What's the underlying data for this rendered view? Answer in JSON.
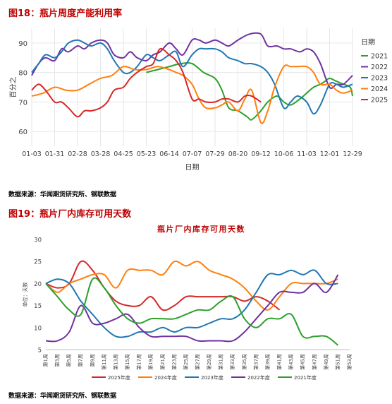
{
  "figure1": {
    "label": "图18：瓶片周度产能利用率",
    "source": "数据来源：华闻期货研究所、钢联数据",
    "chart_data": {
      "type": "line",
      "xlabel": "日期",
      "ylabel": "百分之",
      "ylim": [
        55,
        95
      ],
      "yticks": [
        60,
        70,
        80,
        90
      ],
      "xticks": [
        "01-03",
        "01-31",
        "02-28",
        "03-28",
        "04-25",
        "05-23",
        "06-14",
        "07-07",
        "07-29",
        "08-20",
        "09-12",
        "10-06",
        "11-03",
        "12-01",
        "12-29"
      ],
      "legend_title": "日期",
      "legend_position": "right",
      "grid": true,
      "series": [
        {
          "name": "2021",
          "color": "#2ca02c",
          "x": [
            5,
            5.5,
            6,
            6.5,
            7,
            7.5,
            8,
            8.3,
            8.6,
            9,
            9.4,
            9.6,
            10,
            10.3,
            10.7,
            11,
            11.3,
            11.7,
            12,
            12.3,
            12.6,
            12.8,
            13,
            13.3,
            13.6,
            13.9,
            14
          ],
          "y": [
            80,
            81,
            82,
            83,
            83,
            80,
            78,
            74,
            68,
            67,
            65,
            64,
            67,
            70,
            72,
            70,
            69,
            71,
            73,
            75,
            76,
            77,
            78,
            77,
            76,
            75,
            72
          ]
        },
        {
          "name": "2022",
          "color": "#7030a0",
          "x": [
            0,
            0.3,
            0.6,
            1,
            1.3,
            1.6,
            2,
            2.3,
            2.6,
            3,
            3.3,
            3.6,
            4,
            4.3,
            4.6,
            5,
            5.3,
            5.6,
            6,
            6.3,
            6.6,
            7,
            7.3,
            7.6,
            8,
            8.3,
            8.6,
            9,
            9.5,
            10,
            10.3,
            10.7,
            11,
            11.3,
            11.7,
            12,
            12.3,
            12.6,
            13,
            13.3,
            13.6,
            14
          ],
          "y": [
            79,
            83,
            85,
            84,
            88,
            87,
            89,
            88,
            90,
            91,
            90,
            86,
            85,
            87,
            85,
            84,
            86,
            87,
            90,
            88,
            86,
            91,
            91,
            90,
            91,
            90,
            89,
            91,
            93,
            93,
            89,
            89,
            88,
            88,
            87,
            88,
            87,
            83,
            75,
            76,
            76,
            79
          ]
        },
        {
          "name": "2023",
          "color": "#1f77b4",
          "x": [
            0,
            0.3,
            0.6,
            1,
            1.3,
            1.6,
            2,
            2.3,
            2.6,
            3,
            3.3,
            3.6,
            4,
            4.3,
            4.6,
            5,
            5.3,
            5.6,
            6,
            6.3,
            6.6,
            7,
            7.3,
            7.6,
            8,
            8.3,
            8.6,
            9,
            9.3,
            9.6,
            10,
            10.3,
            10.6,
            11,
            11.3,
            11.6,
            12,
            12.3,
            12.6,
            13,
            13.3,
            13.6,
            14
          ],
          "y": [
            80,
            83,
            86,
            85,
            87,
            90,
            91,
            90,
            89,
            90,
            88,
            84,
            80,
            80,
            82,
            86,
            85,
            84,
            86,
            87,
            82,
            86,
            88,
            88,
            88,
            87,
            85,
            84,
            83,
            83,
            82,
            80,
            76,
            68,
            70,
            72,
            70,
            66,
            69,
            76,
            76,
            75,
            76
          ]
        },
        {
          "name": "2024",
          "color": "#ff7f0e",
          "x": [
            0,
            0.5,
            1,
            1.5,
            2,
            2.5,
            3,
            3.5,
            4,
            4.5,
            5,
            5.5,
            6,
            6.3,
            6.6,
            7,
            7.3,
            7.6,
            8,
            8.3,
            8.6,
            9,
            9.3,
            9.6,
            10,
            10.3,
            10.6,
            11,
            11.3,
            11.6,
            12,
            12.3,
            12.6,
            13,
            13.3,
            13.6,
            14
          ],
          "y": [
            72,
            73,
            75,
            74,
            74,
            76,
            78,
            79,
            82,
            81,
            81,
            82,
            81,
            80,
            79,
            76,
            71,
            68,
            68,
            69,
            70,
            67,
            71,
            74,
            63,
            67,
            75,
            82,
            82,
            82,
            82,
            80,
            76,
            76,
            74,
            73,
            74
          ]
        },
        {
          "name": "2025",
          "color": "#d62728",
          "x": [
            0,
            0.3,
            0.6,
            1,
            1.3,
            1.6,
            2,
            2.3,
            2.6,
            3,
            3.3,
            3.6,
            4,
            4.3,
            4.6,
            5,
            5.3,
            5.6,
            6,
            6.3,
            6.6,
            7,
            7.3,
            7.6,
            8,
            8.3,
            8.6,
            9,
            9.3,
            9.6,
            10
          ],
          "y": [
            74,
            76,
            74,
            70,
            70,
            68,
            65,
            67,
            67,
            68,
            70,
            74,
            75,
            78,
            80,
            82,
            83,
            88,
            86,
            84,
            80,
            71,
            71,
            70,
            70,
            71,
            71,
            70,
            72,
            72,
            70
          ]
        }
      ]
    }
  },
  "figure2": {
    "label": "图19：瓶片厂内库存可用天数",
    "source": "数据来源：华闻期货研究所、钢联数据",
    "chart_data": {
      "type": "line",
      "title": "瓶片厂内库存可用天数",
      "ylabel": "单位：天数",
      "ylim": [
        5,
        30
      ],
      "yticks": [
        5,
        10,
        15,
        20,
        25,
        30
      ],
      "xticks": [
        "第1周",
        "第3周",
        "第5周",
        "第7周",
        "第9周",
        "第11周",
        "第13周",
        "第15周",
        "第17周",
        "第19周",
        "第21周",
        "第23周",
        "第25周",
        "第27周",
        "第29周",
        "第31周",
        "第33周",
        "第35周",
        "第37周",
        "第39周",
        "第41周",
        "第43周",
        "第45周",
        "第47周",
        "第49周",
        "第51周",
        "第53周"
      ],
      "legend_position": "bottom",
      "grid": false,
      "series": [
        {
          "name": "2025年度",
          "color": "#d62728",
          "x": [
            1,
            3,
            5,
            7,
            9,
            11,
            13,
            15,
            17,
            19,
            21,
            23,
            25,
            27,
            29,
            31,
            33,
            35,
            37,
            39,
            41
          ],
          "y": [
            20,
            19,
            20,
            25,
            23,
            19,
            16,
            15,
            15,
            17,
            14,
            15,
            17,
            17,
            17,
            17,
            17,
            16,
            17,
            16,
            14
          ]
        },
        {
          "name": "2024年度",
          "color": "#ff7f0e",
          "x": [
            1,
            3,
            5,
            7,
            9,
            11,
            13,
            15,
            17,
            19,
            21,
            23,
            25,
            27,
            29,
            31,
            33,
            35,
            37,
            39,
            41,
            43,
            45,
            47,
            49,
            51
          ],
          "y": [
            20,
            18,
            20,
            21,
            22,
            22,
            19,
            23,
            23,
            23,
            22,
            25,
            24,
            25,
            23,
            22,
            21,
            19,
            16,
            14,
            17,
            20,
            20,
            20,
            20,
            21
          ]
        },
        {
          "name": "2023年度",
          "color": "#1f77b4",
          "x": [
            1,
            3,
            5,
            7,
            9,
            11,
            13,
            15,
            17,
            19,
            21,
            23,
            25,
            27,
            29,
            31,
            33,
            35,
            37,
            39,
            41,
            43,
            45,
            47,
            49,
            51
          ],
          "y": [
            20,
            21,
            20,
            16,
            13,
            10,
            8,
            8,
            9,
            9,
            10,
            9,
            10,
            10,
            11,
            12,
            12,
            14,
            18,
            22,
            22,
            23,
            22,
            23,
            20,
            20
          ]
        },
        {
          "name": "2022年度",
          "color": "#7030a0",
          "x": [
            1,
            3,
            5,
            7,
            9,
            11,
            13,
            15,
            17,
            19,
            21,
            23,
            25,
            27,
            29,
            31,
            33,
            35,
            37,
            39,
            41,
            43,
            45,
            47,
            49,
            51
          ],
          "y": [
            7,
            7,
            9,
            15,
            11,
            11,
            12,
            13,
            10,
            8,
            8,
            8,
            8,
            7,
            7,
            7,
            7,
            9,
            12,
            15,
            18,
            18,
            18,
            20,
            18,
            22
          ]
        },
        {
          "name": "2021年度",
          "color": "#2ca02c",
          "x": [
            1,
            3,
            5,
            7,
            9,
            11,
            13,
            15,
            17,
            19,
            21,
            23,
            25,
            27,
            29,
            31,
            33,
            35,
            37,
            39,
            41,
            43,
            45,
            47,
            49,
            51
          ],
          "y": [
            20,
            17,
            14,
            13,
            21,
            19,
            15,
            12,
            11,
            12,
            12,
            12,
            13,
            14,
            14,
            16,
            17,
            12,
            10,
            12,
            12,
            13,
            8,
            8,
            8,
            6
          ]
        }
      ]
    }
  }
}
